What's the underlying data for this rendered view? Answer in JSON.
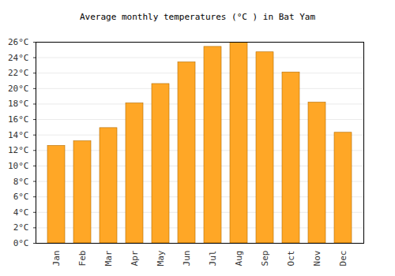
{
  "chart_data": {
    "type": "bar",
    "title": "Average monthly temperatures (°C ) in Bat Yam",
    "categories": [
      "Jan",
      "Feb",
      "Mar",
      "Apr",
      "May",
      "Jun",
      "Jul",
      "Aug",
      "Sep",
      "Oct",
      "Nov",
      "Dec"
    ],
    "values": [
      12.6,
      13.2,
      14.9,
      18.1,
      20.6,
      23.4,
      25.4,
      26.0,
      24.7,
      22.1,
      18.2,
      14.3
    ],
    "color": "#ffa726",
    "ylim": [
      0,
      26
    ],
    "yticks": [
      {
        "value": 0,
        "label": "0°C"
      },
      {
        "value": 2,
        "label": "2°C"
      },
      {
        "value": 4,
        "label": "4°C"
      },
      {
        "value": 6,
        "label": "6°C"
      },
      {
        "value": 8,
        "label": "8°C"
      },
      {
        "value": 10,
        "label": "10°C"
      },
      {
        "value": 12,
        "label": "12°C"
      },
      {
        "value": 14,
        "label": "14°C"
      },
      {
        "value": 16,
        "label": "16°C"
      },
      {
        "value": 18,
        "label": "18°C"
      },
      {
        "value": 20,
        "label": "20°C"
      },
      {
        "value": 22,
        "label": "22°C"
      },
      {
        "value": 24,
        "label": "24°C"
      },
      {
        "value": 26,
        "label": "26°C"
      }
    ],
    "grid": true
  }
}
